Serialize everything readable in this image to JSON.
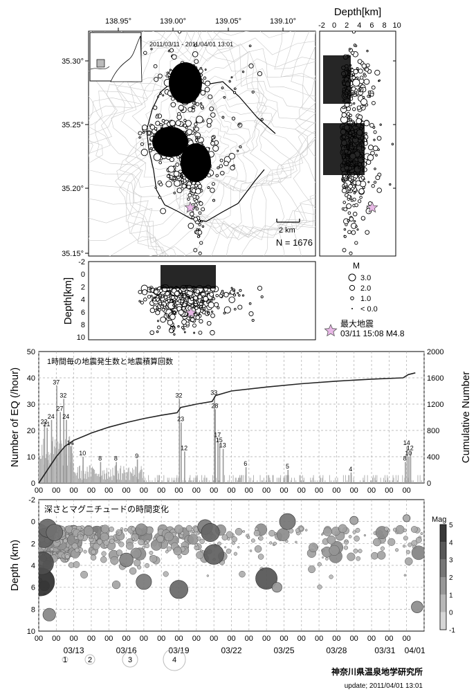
{
  "map": {
    "date_range": "2011/03/11 - 2011/04/01 13:01",
    "count_label": "N = 1676",
    "scalebar_label": "2 km",
    "lon_ticks": [
      "138.95°",
      "139.00°",
      "139.05°",
      "139.10°"
    ],
    "lat_ticks": [
      "35.30°",
      "35.25°",
      "35.20°",
      "35.15°"
    ]
  },
  "depth_panel_right": {
    "title": "Depth[km]",
    "ticks": [
      "-2",
      "0",
      "2",
      "4",
      "6",
      "8",
      "10"
    ]
  },
  "depth_panel_bottom": {
    "ylabel": "Depth[km]",
    "ticks": [
      "-2",
      "0",
      "2",
      "4",
      "6",
      "8",
      "10"
    ]
  },
  "magnitude_legend": {
    "title": "M",
    "items": [
      "3.0",
      "2.0",
      "1.0",
      "< 0.0"
    ],
    "max_label": "最大地震",
    "max_detail": "03/11 15:08 M4.8",
    "max_color": "#e8b8e6"
  },
  "chart_data": [
    {
      "type": "bar",
      "title": "1時間毎の地震発生数と地震積算回数",
      "xlabel": "",
      "ylabel": "Number of EQ (/hour)",
      "y2label": "Cumulative Number",
      "ylim": [
        0,
        50
      ],
      "y2lim": [
        0,
        2000
      ],
      "yticks": [
        "0",
        "10",
        "20",
        "30",
        "40",
        "50"
      ],
      "y2ticks": [
        "0",
        "400",
        "800",
        "1200",
        "1600",
        "2000"
      ],
      "x_tick_labels": [
        "00",
        "00",
        "00",
        "00",
        "00",
        "00",
        "00",
        "00",
        "00",
        "00",
        "00",
        "00",
        "00",
        "00",
        "00",
        "00",
        "00",
        "00",
        "00",
        "00",
        "00",
        "00"
      ],
      "date_labels": [
        "03/13",
        "03/16",
        "03/19",
        "03/22",
        "03/25",
        "03/28",
        "03/31",
        "04/01"
      ],
      "grid": true,
      "bar_color": "#aaaaaa",
      "cumulative_color": "#222222",
      "peaks": [
        {
          "day": 0.3,
          "value": 22
        },
        {
          "day": 0.45,
          "value": 21
        },
        {
          "day": 0.7,
          "value": 24
        },
        {
          "day": 1.0,
          "value": 37
        },
        {
          "day": 1.2,
          "value": 27
        },
        {
          "day": 1.4,
          "value": 32
        },
        {
          "day": 1.55,
          "value": 24
        },
        {
          "day": 1.8,
          "value": 14
        },
        {
          "day": 2.5,
          "value": 10
        },
        {
          "day": 3.5,
          "value": 8
        },
        {
          "day": 4.4,
          "value": 8
        },
        {
          "day": 5.6,
          "value": 9
        },
        {
          "day": 8.0,
          "value": 32
        },
        {
          "day": 8.1,
          "value": 23
        },
        {
          "day": 8.3,
          "value": 12
        },
        {
          "day": 10.0,
          "value": 33
        },
        {
          "day": 10.05,
          "value": 28
        },
        {
          "day": 10.2,
          "value": 17
        },
        {
          "day": 10.3,
          "value": 15
        },
        {
          "day": 10.5,
          "value": 13
        },
        {
          "day": 11.8,
          "value": 6
        },
        {
          "day": 14.2,
          "value": 5
        },
        {
          "day": 17.8,
          "value": 4
        },
        {
          "day": 21.0,
          "value": 14
        },
        {
          "day": 21.2,
          "value": 12
        },
        {
          "day": 21.1,
          "value": 10
        },
        {
          "day": 20.9,
          "value": 8
        }
      ],
      "cumulative": [
        {
          "day": 0,
          "value": 0
        },
        {
          "day": 0.5,
          "value": 200
        },
        {
          "day": 1.0,
          "value": 400
        },
        {
          "day": 1.5,
          "value": 560
        },
        {
          "day": 2.0,
          "value": 650
        },
        {
          "day": 3.0,
          "value": 760
        },
        {
          "day": 4.0,
          "value": 850
        },
        {
          "day": 5.0,
          "value": 920
        },
        {
          "day": 6.0,
          "value": 980
        },
        {
          "day": 7.0,
          "value": 1030
        },
        {
          "day": 7.9,
          "value": 1070
        },
        {
          "day": 8.1,
          "value": 1150
        },
        {
          "day": 9.0,
          "value": 1200
        },
        {
          "day": 9.9,
          "value": 1240
        },
        {
          "day": 10.1,
          "value": 1330
        },
        {
          "day": 11.0,
          "value": 1400
        },
        {
          "day": 13.0,
          "value": 1460
        },
        {
          "day": 15.0,
          "value": 1510
        },
        {
          "day": 17.0,
          "value": 1550
        },
        {
          "day": 19.0,
          "value": 1580
        },
        {
          "day": 20.8,
          "value": 1600
        },
        {
          "day": 21.1,
          "value": 1650
        },
        {
          "day": 21.5,
          "value": 1676
        }
      ]
    },
    {
      "type": "scatter",
      "title": "深さとマグニチュードの時間変化",
      "ylabel": "Depth (km)",
      "ylim": [
        -2,
        10
      ],
      "yticks": [
        "-2",
        "0",
        "2",
        "4",
        "6",
        "8",
        "10"
      ],
      "colorbar_label": "Mag",
      "colorbar_ticks": [
        "5",
        "4",
        "3",
        "2",
        "1",
        "0",
        "-1"
      ],
      "x_tick_labels": [
        "00",
        "00",
        "00",
        "00",
        "00",
        "00",
        "00",
        "00",
        "00",
        "00",
        "00",
        "00",
        "00",
        "00",
        "00",
        "00",
        "00",
        "00",
        "00",
        "00",
        "00",
        "00"
      ],
      "date_labels": [
        "03/13",
        "03/16",
        "03/19",
        "03/22",
        "03/25",
        "03/28",
        "03/31",
        "04/01"
      ],
      "grid": true,
      "size_legend": [
        "1",
        "2",
        "3",
        "4"
      ],
      "points": [
        {
          "day": 0.1,
          "depth": 5.5,
          "mag": 4.8
        },
        {
          "day": 0.2,
          "depth": 3.8,
          "mag": 3.8
        },
        {
          "day": 0.3,
          "depth": 1.5,
          "mag": 3.2
        },
        {
          "day": 0.5,
          "depth": 0.6,
          "mag": 3.0
        },
        {
          "day": 0.9,
          "depth": 1.0,
          "mag": 2.7
        },
        {
          "day": 0.6,
          "depth": 8.5,
          "mag": 2.0
        },
        {
          "day": 5.0,
          "depth": 3.5,
          "mag": 2.2
        },
        {
          "day": 6.0,
          "depth": 5.5,
          "mag": 2.5
        },
        {
          "day": 8.0,
          "depth": 6.2,
          "mag": 3.0
        },
        {
          "day": 9.5,
          "depth": 0.5,
          "mag": 2.4
        },
        {
          "day": 10.0,
          "depth": 3.0,
          "mag": 3.3
        },
        {
          "day": 9.8,
          "depth": 1.0,
          "mag": 3.0
        },
        {
          "day": 13.0,
          "depth": 5.2,
          "mag": 3.6
        },
        {
          "day": 13.6,
          "depth": 6.0,
          "mag": 1.5
        },
        {
          "day": 14.2,
          "depth": 0.0,
          "mag": 2.6
        },
        {
          "day": 18.0,
          "depth": -0.1,
          "mag": 1.2
        },
        {
          "day": 21.0,
          "depth": -0.3,
          "mag": 1.0
        },
        {
          "day": 21.6,
          "depth": 7.8,
          "mag": 1.8
        }
      ]
    }
  ],
  "footer": {
    "institution": "神奈川県温泉地学研究所",
    "update": "update; 2011/04/01 13:01"
  }
}
